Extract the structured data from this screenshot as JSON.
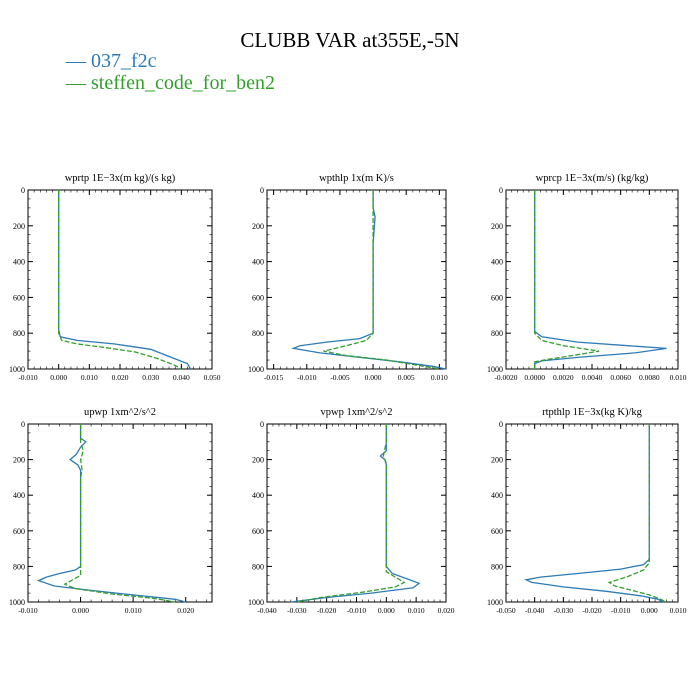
{
  "title": "CLUBB VAR at355E,-5N",
  "colors": {
    "series1": "#2c7bb6",
    "series2": "#33a02c"
  },
  "legend": [
    {
      "label": "— 037_f2c",
      "color": "#2c7bb6"
    },
    {
      "label": "— steffen_code_for_ben2",
      "color": "#33a02c"
    }
  ],
  "chart_data": [
    {
      "type": "line",
      "title": "wprtp   1E−3x(m kg)/(s kg)",
      "xlim": [
        -0.01,
        0.05
      ],
      "ylim": [
        0,
        1000
      ],
      "xticks": [
        "-0.010",
        "0.000",
        "0.010",
        "0.020",
        "0.030",
        "0.040",
        "0.050"
      ],
      "yticks": [
        "0",
        "200",
        "400",
        "600",
        "800",
        "1000"
      ],
      "series": [
        {
          "name": "037_f2c",
          "points": [
            [
              0,
              0
            ],
            [
              0,
              200
            ],
            [
              0,
              400
            ],
            [
              0,
              600
            ],
            [
              0,
              780
            ],
            [
              0.0005,
              820
            ],
            [
              0.006,
              840
            ],
            [
              0.018,
              860
            ],
            [
              0.03,
              890
            ],
            [
              0.036,
              930
            ],
            [
              0.042,
              970
            ],
            [
              0.043,
              1000
            ]
          ]
        },
        {
          "name": "steffen_code_for_ben2",
          "points": [
            [
              0,
              0
            ],
            [
              0,
              200
            ],
            [
              0,
              400
            ],
            [
              0,
              600
            ],
            [
              0,
              800
            ],
            [
              0.001,
              840
            ],
            [
              0.006,
              860
            ],
            [
              0.015,
              880
            ],
            [
              0.025,
              905
            ],
            [
              0.032,
              940
            ],
            [
              0.038,
              980
            ],
            [
              0.04,
              1000
            ]
          ]
        }
      ]
    },
    {
      "type": "line",
      "title": "wpthlp   1x(m K)/s",
      "xlim": [
        -0.016,
        0.011
      ],
      "ylim": [
        0,
        1000
      ],
      "xticks": [
        "-0.015",
        "-0.010",
        "-0.005",
        "0.000",
        "0.005",
        "0.010"
      ],
      "yticks": [
        "0",
        "200",
        "400",
        "600",
        "800",
        "1000"
      ],
      "series": [
        {
          "name": "037_f2c",
          "points": [
            [
              0,
              0
            ],
            [
              0,
              100
            ],
            [
              0.0003,
              150
            ],
            [
              0.0002,
              200
            ],
            [
              0,
              300
            ],
            [
              0,
              500
            ],
            [
              0,
              700
            ],
            [
              0,
              800
            ],
            [
              -0.002,
              830
            ],
            [
              -0.007,
              850
            ],
            [
              -0.011,
              870
            ],
            [
              -0.012,
              885
            ],
            [
              -0.008,
              910
            ],
            [
              -0.002,
              935
            ],
            [
              0.004,
              960
            ],
            [
              0.009,
              985
            ],
            [
              0.011,
              1000
            ]
          ]
        },
        {
          "name": "steffen_code_for_ben2",
          "points": [
            [
              0,
              0
            ],
            [
              0,
              100
            ],
            [
              0,
              200
            ],
            [
              0,
              400
            ],
            [
              0,
              600
            ],
            [
              0,
              800
            ],
            [
              -0.001,
              840
            ],
            [
              -0.004,
              870
            ],
            [
              -0.0075,
              900
            ],
            [
              -0.004,
              925
            ],
            [
              0.002,
              950
            ],
            [
              0.006,
              975
            ],
            [
              0.01,
              1000
            ]
          ]
        }
      ]
    },
    {
      "type": "line",
      "title": "wprcp   1E−3x(m/s) (kg/kg)",
      "xlim": [
        -0.002,
        0.01
      ],
      "ylim": [
        0,
        1000
      ],
      "xticks": [
        "-0.0020",
        "0.0000",
        "0.0020",
        "0.0040",
        "0.0060",
        "0.0080",
        "0.010"
      ],
      "yticks": [
        "0",
        "200",
        "400",
        "600",
        "800",
        "1000"
      ],
      "series": [
        {
          "name": "037_f2c",
          "points": [
            [
              0,
              0
            ],
            [
              0,
              200
            ],
            [
              0,
              400
            ],
            [
              0,
              600
            ],
            [
              0,
              790
            ],
            [
              0.0005,
              820
            ],
            [
              0.003,
              850
            ],
            [
              0.0065,
              870
            ],
            [
              0.0092,
              885
            ],
            [
              0.007,
              910
            ],
            [
              0.003,
              935
            ],
            [
              0.0005,
              955
            ],
            [
              0,
              970
            ],
            [
              0,
              1000
            ]
          ]
        },
        {
          "name": "steffen_code_for_ben2",
          "points": [
            [
              0,
              0
            ],
            [
              0,
              200
            ],
            [
              0,
              400
            ],
            [
              0,
              600
            ],
            [
              0,
              800
            ],
            [
              0.0005,
              840
            ],
            [
              0.002,
              870
            ],
            [
              0.0045,
              900
            ],
            [
              0.003,
              920
            ],
            [
              0.001,
              945
            ],
            [
              0,
              960
            ],
            [
              0,
              1000
            ]
          ]
        }
      ]
    },
    {
      "type": "line",
      "title": "upwp   1xm^2/s^2",
      "xlim": [
        -0.01,
        0.025
      ],
      "ylim": [
        0,
        1000
      ],
      "xticks": [
        "-0.010",
        "0.000",
        "0.010",
        "0.020"
      ],
      "yticks": [
        "0",
        "200",
        "400",
        "600",
        "800",
        "1000"
      ],
      "series": [
        {
          "name": "037_f2c",
          "points": [
            [
              0,
              0
            ],
            [
              0,
              80
            ],
            [
              0.001,
              100
            ],
            [
              0,
              130
            ],
            [
              -0.0008,
              170
            ],
            [
              -0.002,
              200
            ],
            [
              -0.0005,
              230
            ],
            [
              0,
              260
            ],
            [
              0,
              300
            ],
            [
              0,
              500
            ],
            [
              0,
              700
            ],
            [
              0,
              800
            ],
            [
              -0.001,
              820
            ],
            [
              -0.004,
              840
            ],
            [
              -0.0065,
              860
            ],
            [
              -0.008,
              880
            ],
            [
              -0.005,
              910
            ],
            [
              0.002,
              935
            ],
            [
              0.01,
              960
            ],
            [
              0.018,
              985
            ],
            [
              0.02,
              1000
            ]
          ]
        },
        {
          "name": "steffen_code_for_ben2",
          "points": [
            [
              0,
              0
            ],
            [
              0,
              100
            ],
            [
              0.0005,
              150
            ],
            [
              0,
              200
            ],
            [
              0.0003,
              260
            ],
            [
              0,
              300
            ],
            [
              0,
              500
            ],
            [
              0,
              700
            ],
            [
              0,
              850
            ],
            [
              -0.0015,
              875
            ],
            [
              -0.003,
              900
            ],
            [
              -0.001,
              925
            ],
            [
              0.006,
              955
            ],
            [
              0.014,
              980
            ],
            [
              0.018,
              1000
            ]
          ]
        }
      ]
    },
    {
      "type": "line",
      "title": "vpwp   1xm^2/s^2",
      "xlim": [
        -0.04,
        0.02
      ],
      "ylim": [
        0,
        1000
      ],
      "xticks": [
        "-0.040",
        "-0.030",
        "-0.020",
        "-0.010",
        "0.000",
        "0.010",
        "0.020"
      ],
      "yticks": [
        "0",
        "200",
        "400",
        "600",
        "800",
        "1000"
      ],
      "series": [
        {
          "name": "037_f2c",
          "points": [
            [
              0,
              0
            ],
            [
              0,
              100
            ],
            [
              0,
              150
            ],
            [
              -0.002,
              180
            ],
            [
              -0.0005,
              200
            ],
            [
              0,
              230
            ],
            [
              0,
              300
            ],
            [
              0,
              500
            ],
            [
              0,
              700
            ],
            [
              0,
              800
            ],
            [
              0.002,
              840
            ],
            [
              0.007,
              870
            ],
            [
              0.011,
              895
            ],
            [
              0.009,
              920
            ],
            [
              -0.005,
              950
            ],
            [
              -0.02,
              975
            ],
            [
              -0.032,
              1000
            ]
          ]
        },
        {
          "name": "steffen_code_for_ben2",
          "points": [
            [
              0,
              0
            ],
            [
              0,
              100
            ],
            [
              -0.001,
              180
            ],
            [
              0,
              220
            ],
            [
              0,
              300
            ],
            [
              0,
              500
            ],
            [
              0,
              700
            ],
            [
              0,
              830
            ],
            [
              0.003,
              860
            ],
            [
              0.006,
              890
            ],
            [
              0.003,
              915
            ],
            [
              -0.008,
              945
            ],
            [
              -0.022,
              975
            ],
            [
              -0.03,
              1000
            ]
          ]
        }
      ]
    },
    {
      "type": "line",
      "title": "rtpthlp   1E−3x(kg K)/kg",
      "xlim": [
        -0.05,
        0.01
      ],
      "ylim": [
        0,
        1000
      ],
      "xticks": [
        "-0.050",
        "-0.040",
        "-0.030",
        "-0.020",
        "-0.010",
        "0.000",
        "0.010"
      ],
      "yticks": [
        "0",
        "200",
        "400",
        "600",
        "800",
        "1000"
      ],
      "series": [
        {
          "name": "037_f2c",
          "points": [
            [
              0,
              0
            ],
            [
              0,
              200
            ],
            [
              0,
              400
            ],
            [
              0,
              600
            ],
            [
              0,
              760
            ],
            [
              -0.002,
              790
            ],
            [
              -0.01,
              815
            ],
            [
              -0.025,
              840
            ],
            [
              -0.038,
              860
            ],
            [
              -0.043,
              875
            ],
            [
              -0.041,
              890
            ],
            [
              -0.03,
              915
            ],
            [
              -0.015,
              940
            ],
            [
              -0.003,
              965
            ],
            [
              0.003,
              985
            ],
            [
              0.005,
              1000
            ]
          ]
        },
        {
          "name": "steffen_code_for_ben2",
          "points": [
            [
              0,
              0
            ],
            [
              0,
              200
            ],
            [
              0,
              400
            ],
            [
              0,
              600
            ],
            [
              0,
              780
            ],
            [
              -0.002,
              820
            ],
            [
              -0.008,
              860
            ],
            [
              -0.014,
              890
            ],
            [
              -0.012,
              910
            ],
            [
              -0.006,
              935
            ],
            [
              0,
              960
            ],
            [
              0.004,
              985
            ],
            [
              0.006,
              1000
            ]
          ]
        }
      ]
    }
  ]
}
